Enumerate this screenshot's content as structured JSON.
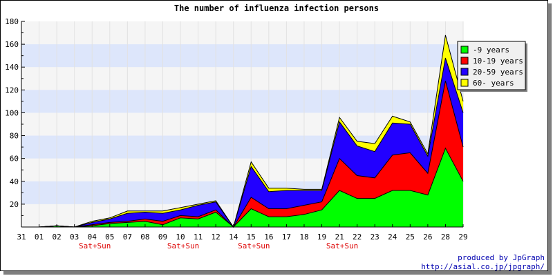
{
  "chart_data": {
    "type": "area",
    "stacked": true,
    "title": "The number of influenza infection persons",
    "categories": [
      "31",
      "01",
      "02",
      "03",
      "04",
      "05",
      "07",
      "08",
      "09",
      "10",
      "11",
      "12",
      "14",
      "15",
      "16",
      "17",
      "18",
      "19",
      "21",
      "22",
      "23",
      "24",
      "25",
      "26",
      "28",
      "29"
    ],
    "weekend_markers": [
      {
        "category": "04",
        "label": "Sat+Sun"
      },
      {
        "category": "10",
        "label": "Sat+Sun"
      },
      {
        "category": "15",
        "label": "Sat+Sun"
      },
      {
        "category": "21",
        "label": "Sat+Sun"
      }
    ],
    "series": [
      {
        "name": "-9 years",
        "color": "#00ff00",
        "values": [
          0,
          0,
          1,
          0,
          1,
          3,
          4,
          5,
          2,
          8,
          7,
          13,
          0,
          16,
          9,
          9,
          11,
          15,
          32,
          25,
          25,
          32,
          32,
          28,
          69,
          40
        ]
      },
      {
        "name": "10-19 years",
        "color": "#ff0000",
        "values": [
          0,
          0,
          0,
          0,
          1,
          1,
          1,
          2,
          3,
          2,
          2,
          2,
          0,
          10,
          7,
          7,
          8,
          7,
          28,
          20,
          18,
          31,
          33,
          19,
          59,
          30
        ]
      },
      {
        "name": "20-59 years",
        "color": "#2200ff",
        "values": [
          0,
          0,
          0,
          0,
          2,
          3,
          7,
          6,
          7,
          5,
          10,
          7,
          0,
          27,
          15,
          16,
          13,
          10,
          32,
          26,
          23,
          28,
          25,
          15,
          20,
          30
        ]
      },
      {
        "name": "60- years",
        "color": "#ffff00",
        "values": [
          0,
          0,
          0,
          0,
          1,
          1,
          2,
          1,
          2,
          2,
          1,
          1,
          0,
          4,
          3,
          2,
          1,
          1,
          4,
          4,
          7,
          6,
          2,
          2,
          20,
          10
        ]
      }
    ],
    "ylim": [
      0,
      180
    ],
    "yticks": [
      20,
      40,
      60,
      80,
      100,
      120,
      140,
      160,
      180
    ],
    "grid": true,
    "legend_position": "top-right"
  },
  "credit": {
    "line1": "produced by JpGraph",
    "line2": "http://asial.co.jp/jpgraph/"
  }
}
